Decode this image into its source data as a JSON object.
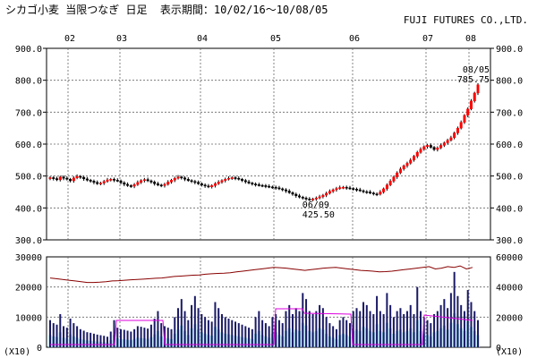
{
  "header": {
    "title": "シカゴ小麦 当限つなぎ 日足  表示期間：10/02/16～10/08/05",
    "company": "FUJI FUTURES CO.,LTD."
  },
  "colors": {
    "up_candle": "#ff0000",
    "down_candle": "#000000",
    "volume_bar": "#1a1a66",
    "volume_area": "#99ddee",
    "oi_line": "#880000",
    "magenta_line": "#dd00dd",
    "grid": "#666666"
  },
  "chart_data": [
    {
      "type": "candlestick",
      "months": [
        "02",
        "03",
        "04",
        "05",
        "06",
        "07",
        "08"
      ],
      "y_ticks": [
        "900.0",
        "800.0",
        "700.0",
        "600.0",
        "500.0",
        "400.0",
        "300.0"
      ],
      "ylim": [
        300,
        900
      ],
      "close_series": [
        495,
        492,
        488,
        497,
        493,
        490,
        485,
        494,
        499,
        496,
        491,
        487,
        484,
        480,
        476,
        478,
        483,
        488,
        490,
        487,
        485,
        479,
        474,
        470,
        468,
        473,
        480,
        486,
        489,
        485,
        481,
        476,
        472,
        470,
        474,
        481,
        487,
        493,
        497,
        494,
        490,
        486,
        483,
        480,
        476,
        472,
        469,
        466,
        470,
        476,
        481,
        486,
        490,
        493,
        495,
        493,
        490,
        486,
        482,
        478,
        475,
        473,
        471,
        470,
        468,
        466,
        465,
        463,
        460,
        457,
        453,
        448,
        443,
        438,
        434,
        431,
        428,
        426,
        428,
        431,
        435,
        440,
        446,
        452,
        457,
        461,
        464,
        465,
        463,
        461,
        459,
        457,
        454,
        451,
        450,
        447,
        444,
        443,
        450,
        460,
        472,
        484,
        497,
        510,
        522,
        532,
        540,
        550,
        562,
        574,
        584,
        592,
        596,
        590,
        583,
        588,
        596,
        604,
        612,
        620,
        635,
        650,
        668,
        690,
        710,
        735,
        760,
        785.75
      ],
      "annotations": {
        "low": {
          "date": "06/09",
          "value": "425.50"
        },
        "high": {
          "date": "08/05",
          "value": "785.75"
        }
      }
    },
    {
      "type": "bar",
      "months": [
        "02",
        "03",
        "04",
        "05",
        "06",
        "07",
        "08"
      ],
      "left_ticks": [
        "30000",
        "20000",
        "10000",
        "0"
      ],
      "right_ticks": [
        "60000",
        "40000",
        "20000",
        "0"
      ],
      "unit_left": "(X10)",
      "unit_right": "(X10)",
      "ylim_left": [
        0,
        30000
      ],
      "ylim_right": [
        0,
        60000
      ],
      "volume": [
        9000,
        8000,
        7500,
        11000,
        7000,
        6500,
        9500,
        8000,
        7000,
        6000,
        5500,
        5000,
        4800,
        4500,
        4200,
        4000,
        3800,
        3500,
        5200,
        9000,
        6500,
        6000,
        5800,
        5500,
        5200,
        6000,
        7000,
        6800,
        6500,
        6200,
        7500,
        9500,
        12000,
        8000,
        7000,
        6500,
        6000,
        10000,
        13000,
        16000,
        12000,
        9000,
        14000,
        17000,
        13000,
        11000,
        10000,
        9000,
        8500,
        15000,
        13000,
        11000,
        10000,
        9500,
        9000,
        8500,
        8000,
        7500,
        7000,
        6500,
        6000,
        10000,
        12000,
        9000,
        8000,
        7000,
        10000,
        11000,
        9000,
        8000,
        12000,
        14000,
        11000,
        13000,
        12000,
        18000,
        16000,
        12000,
        11000,
        12000,
        14000,
        13000,
        10000,
        8000,
        7000,
        6000,
        9000,
        10000,
        9000,
        8000,
        12000,
        13000,
        12000,
        15000,
        14000,
        12000,
        11000,
        17000,
        12000,
        11000,
        18000,
        14000,
        10000,
        12000,
        13000,
        11000,
        12000,
        14000,
        11000,
        20000,
        12000,
        10000,
        9000,
        8000,
        11000,
        12000,
        14000,
        16000,
        13000,
        18000,
        25000,
        17000,
        14000,
        12000,
        19000,
        15000,
        12000,
        9000
      ],
      "open_interest": [
        46000,
        45500,
        45000,
        44500,
        44000,
        43500,
        43000,
        43000,
        43200,
        43500,
        44000,
        44200,
        44500,
        44800,
        45000,
        45200,
        45500,
        45800,
        46000,
        46500,
        47000,
        47200,
        47500,
        47800,
        48000,
        48500,
        48800,
        49000,
        49200,
        49500,
        50000,
        50500,
        51000,
        51500,
        52000,
        52500,
        53000,
        52800,
        52500,
        52000,
        51500,
        51000,
        51500,
        52000,
        52500,
        52800,
        53000,
        52500,
        52000,
        51500,
        51000,
        50800,
        50500,
        50000,
        50200,
        50500,
        51000,
        51500,
        52000,
        52500,
        53000,
        53500,
        52000,
        52500,
        53500,
        53000,
        54000,
        52000,
        53000
      ]
    }
  ]
}
